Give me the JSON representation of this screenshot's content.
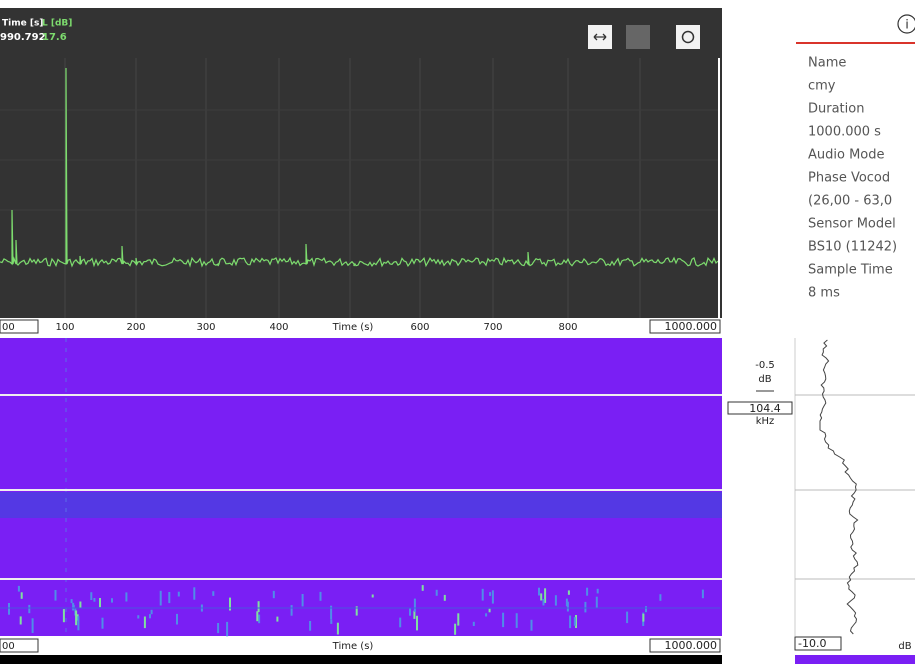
{
  "plot": {
    "readout": {
      "time_label": "Time [s]",
      "level_label": "L [dB]",
      "time_value": "990.792",
      "level_value": "17.6"
    },
    "x_axis": {
      "start": "00",
      "ticks": [
        "100",
        "200",
        "300",
        "400",
        "600",
        "700",
        "800"
      ],
      "title": "Time (s)",
      "end": "1000.000"
    }
  },
  "spectrogram": {
    "x_axis": {
      "start": "00",
      "title": "Time (s)",
      "end": "1000.000"
    }
  },
  "cursor": {
    "level": "-0.5",
    "level_unit": "dB",
    "frequency": "104.4",
    "frequency_unit": "kHz"
  },
  "info": {
    "fields": [
      {
        "label": "Name",
        "lines": [
          "cmy"
        ]
      },
      {
        "label": "Duration",
        "lines": [
          "1000.000 s"
        ]
      },
      {
        "label": "Audio Mode",
        "lines": [
          "Phase Vocod",
          "(26,00 - 63,0"
        ]
      },
      {
        "label": "Sensor Model",
        "lines": [
          "BS10 (11242)"
        ]
      },
      {
        "label": "Sample Time",
        "lines": [
          "8 ms"
        ]
      }
    ]
  },
  "profile": {
    "min": "-10.0",
    "unit": "dB"
  }
}
